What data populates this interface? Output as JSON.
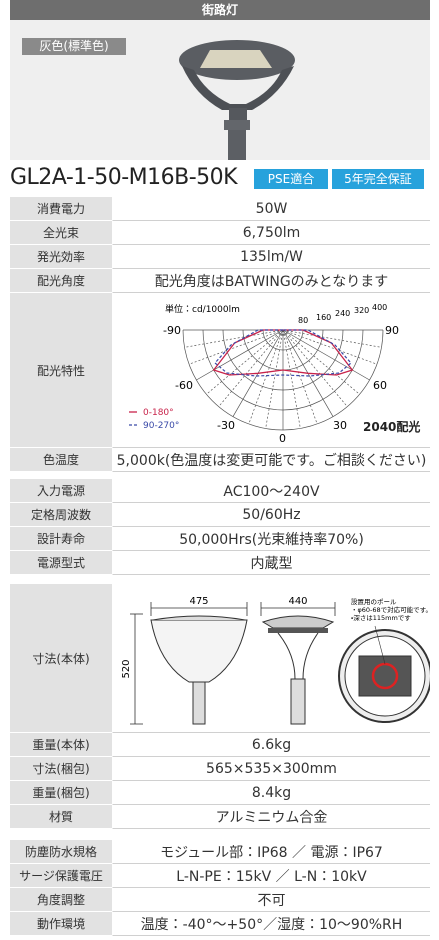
{
  "header": {
    "title": "街路灯"
  },
  "photo": {
    "label": "灰色(標準色)"
  },
  "model": {
    "name": "GL2A-1-50-M16B-50K",
    "badges": [
      "PSE適合",
      "5年完全保証"
    ]
  },
  "specs": [
    [
      {
        "label": "消費電力",
        "value": "50W"
      },
      {
        "label": "全光束",
        "value": "6,750lm"
      },
      {
        "label": "発光効率",
        "value": "135lm/W"
      },
      {
        "label": "配光角度",
        "value": "配光角度はBATWINGのみとなります"
      },
      {
        "label": "配光特性"
      },
      {
        "label": "色温度",
        "value": "5,000k(色温度は変更可能です。ご相談ください)"
      }
    ],
    [
      {
        "label": "入力電源",
        "value": "AC100〜240V"
      },
      {
        "label": "定格周波数",
        "value": "50/60Hz"
      },
      {
        "label": "設計寿命",
        "value": "50,000Hrs(光束維持率70%)"
      },
      {
        "label": "電源型式",
        "value": "内蔵型"
      }
    ],
    [
      {
        "label": "寸法(本体)"
      },
      {
        "label": "重量(本体)",
        "value": "6.6kg"
      },
      {
        "label": "寸法(梱包)",
        "value": "565×535×300mm"
      },
      {
        "label": "重量(梱包)",
        "value": "8.4kg"
      },
      {
        "label": "材質",
        "value": "アルミニウム合金"
      }
    ],
    [
      {
        "label": "防塵防水規格",
        "value": "モジュール部：IP68 ／ 電源：IP67"
      },
      {
        "label": "サージ保護電圧",
        "value": "L-N-PE：15kV ／ L-N：10kV"
      },
      {
        "label": "角度調整",
        "value": "不可"
      },
      {
        "label": "動作環境",
        "value": "温度：-40°〜+50°／湿度：10〜90%RH"
      }
    ]
  ],
  "light_distribution": {
    "unit": "単位：cd/1000lm",
    "radial_ticks": [
      "80",
      "160",
      "240",
      "320",
      "400"
    ],
    "angle_labels": [
      "-90",
      "90",
      "-60",
      "60",
      "-30",
      "30",
      "0"
    ],
    "legend": [
      "0-180°",
      "90-270°"
    ],
    "note": "2040配光"
  },
  "dimension_drawing": {
    "width": "475",
    "depth": "440",
    "height": "520",
    "pole_note": [
      "設置用のポール",
      "・φ60-68で対応可能です。",
      "・深さは115mmです"
    ]
  }
}
